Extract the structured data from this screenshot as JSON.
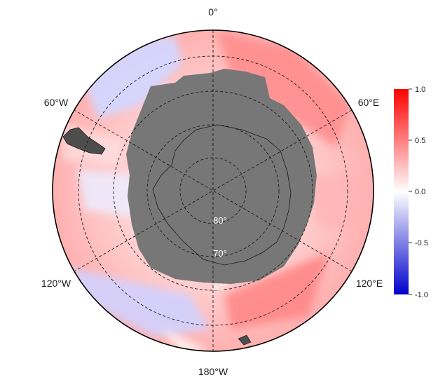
{
  "map": {
    "projection": "south-polar-stereographic",
    "longitude_labels": {
      "top": "0°",
      "upper_right": "60°E",
      "lower_right": "120°E",
      "bottom": "180°W",
      "lower_left": "120°W",
      "upper_left": "60°W"
    },
    "latitude_labels": [
      "80°",
      "70°",
      "60°"
    ],
    "land_color": "#777777",
    "ocean_field": "correlation / anomaly shading (blue negative, red positive)"
  },
  "colorbar": {
    "ticks": [
      "1.0",
      "0.5",
      "0.0",
      "-0.5",
      "-1.0"
    ],
    "max_color": "#ff0000",
    "mid_color": "#ffffff",
    "min_color": "#0000cc"
  }
}
